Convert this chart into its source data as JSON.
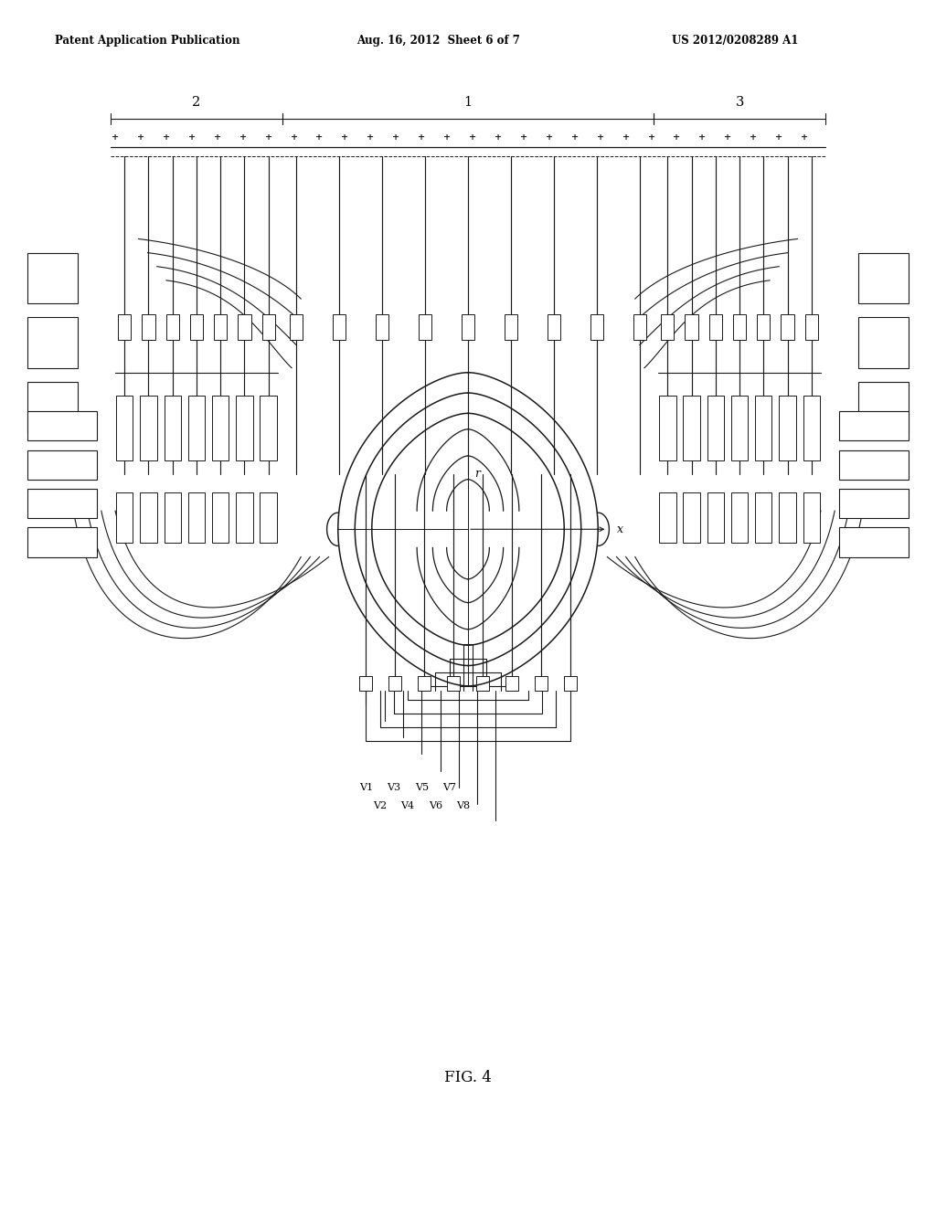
{
  "header_left": "Patent Application Publication",
  "header_mid": "Aug. 16, 2012  Sheet 6 of 7",
  "header_right": "US 2012/0208289 A1",
  "figure_label": "FIG. 4",
  "label_1": "1",
  "label_2": "2",
  "label_3": "3",
  "label_r": "r",
  "label_x": "x",
  "voltage_labels_top": [
    "V1",
    "V3",
    "V5",
    "V7"
  ],
  "voltage_labels_bot": [
    "V2",
    "V4",
    "V6",
    "V8"
  ],
  "bg_color": "#ffffff",
  "line_color": "#1a1a1a",
  "line_width": 1.0
}
